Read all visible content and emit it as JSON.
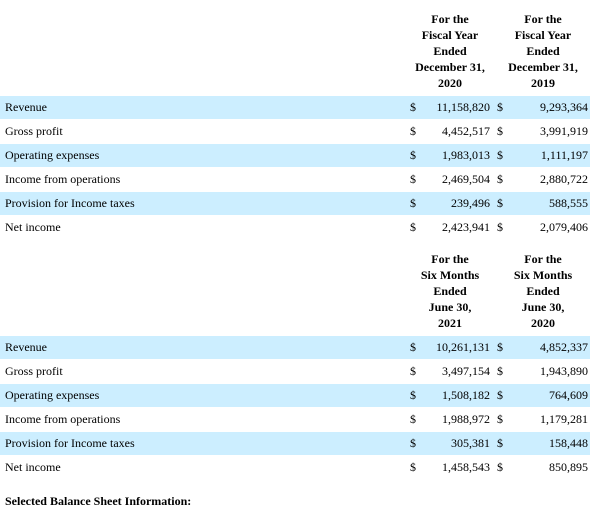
{
  "section1": {
    "col1_header": [
      "For the",
      "Fiscal Year",
      "Ended",
      "December 31,",
      "2020"
    ],
    "col2_header": [
      "For the",
      "Fiscal Year",
      "Ended",
      "December 31,",
      "2019"
    ],
    "rows": [
      {
        "label": "Revenue",
        "cur1": "$",
        "v1": "11,158,820",
        "cur2": "$",
        "v2": "9,293,364"
      },
      {
        "label": "Gross profit",
        "cur1": "$",
        "v1": "4,452,517",
        "cur2": "$",
        "v2": "3,991,919"
      },
      {
        "label": "Operating expenses",
        "cur1": "$",
        "v1": "1,983,013",
        "cur2": "$",
        "v2": "1,111,197"
      },
      {
        "label": "Income from operations",
        "cur1": "$",
        "v1": "2,469,504",
        "cur2": "$",
        "v2": "2,880,722"
      },
      {
        "label": "Provision for Income taxes",
        "cur1": "$",
        "v1": "239,496",
        "cur2": "$",
        "v2": "588,555"
      },
      {
        "label": "Net income",
        "cur1": "$",
        "v1": "2,423,941",
        "cur2": "$",
        "v2": "2,079,406"
      }
    ]
  },
  "section2": {
    "col1_header": [
      "For the",
      "Six Months",
      "Ended",
      "June 30,",
      "2021"
    ],
    "col2_header": [
      "For the",
      "Six Months",
      "Ended",
      "June 30,",
      "2020"
    ],
    "rows": [
      {
        "label": "Revenue",
        "cur1": "$",
        "v1": "10,261,131",
        "cur2": "$",
        "v2": "4,852,337"
      },
      {
        "label": "Gross profit",
        "cur1": "$",
        "v1": "3,497,154",
        "cur2": "$",
        "v2": "1,943,890"
      },
      {
        "label": "Operating expenses",
        "cur1": "$",
        "v1": "1,508,182",
        "cur2": "$",
        "v2": "764,609"
      },
      {
        "label": "Income from operations",
        "cur1": "$",
        "v1": "1,988,972",
        "cur2": "$",
        "v2": "1,179,281"
      },
      {
        "label": "Provision for Income taxes",
        "cur1": "$",
        "v1": "305,381",
        "cur2": "$",
        "v2": "158,448"
      },
      {
        "label": "Net income",
        "cur1": "$",
        "v1": "1,458,543",
        "cur2": "$",
        "v2": "850,895"
      }
    ]
  },
  "footer": {
    "text": "Selected Balance Sheet Information:"
  }
}
